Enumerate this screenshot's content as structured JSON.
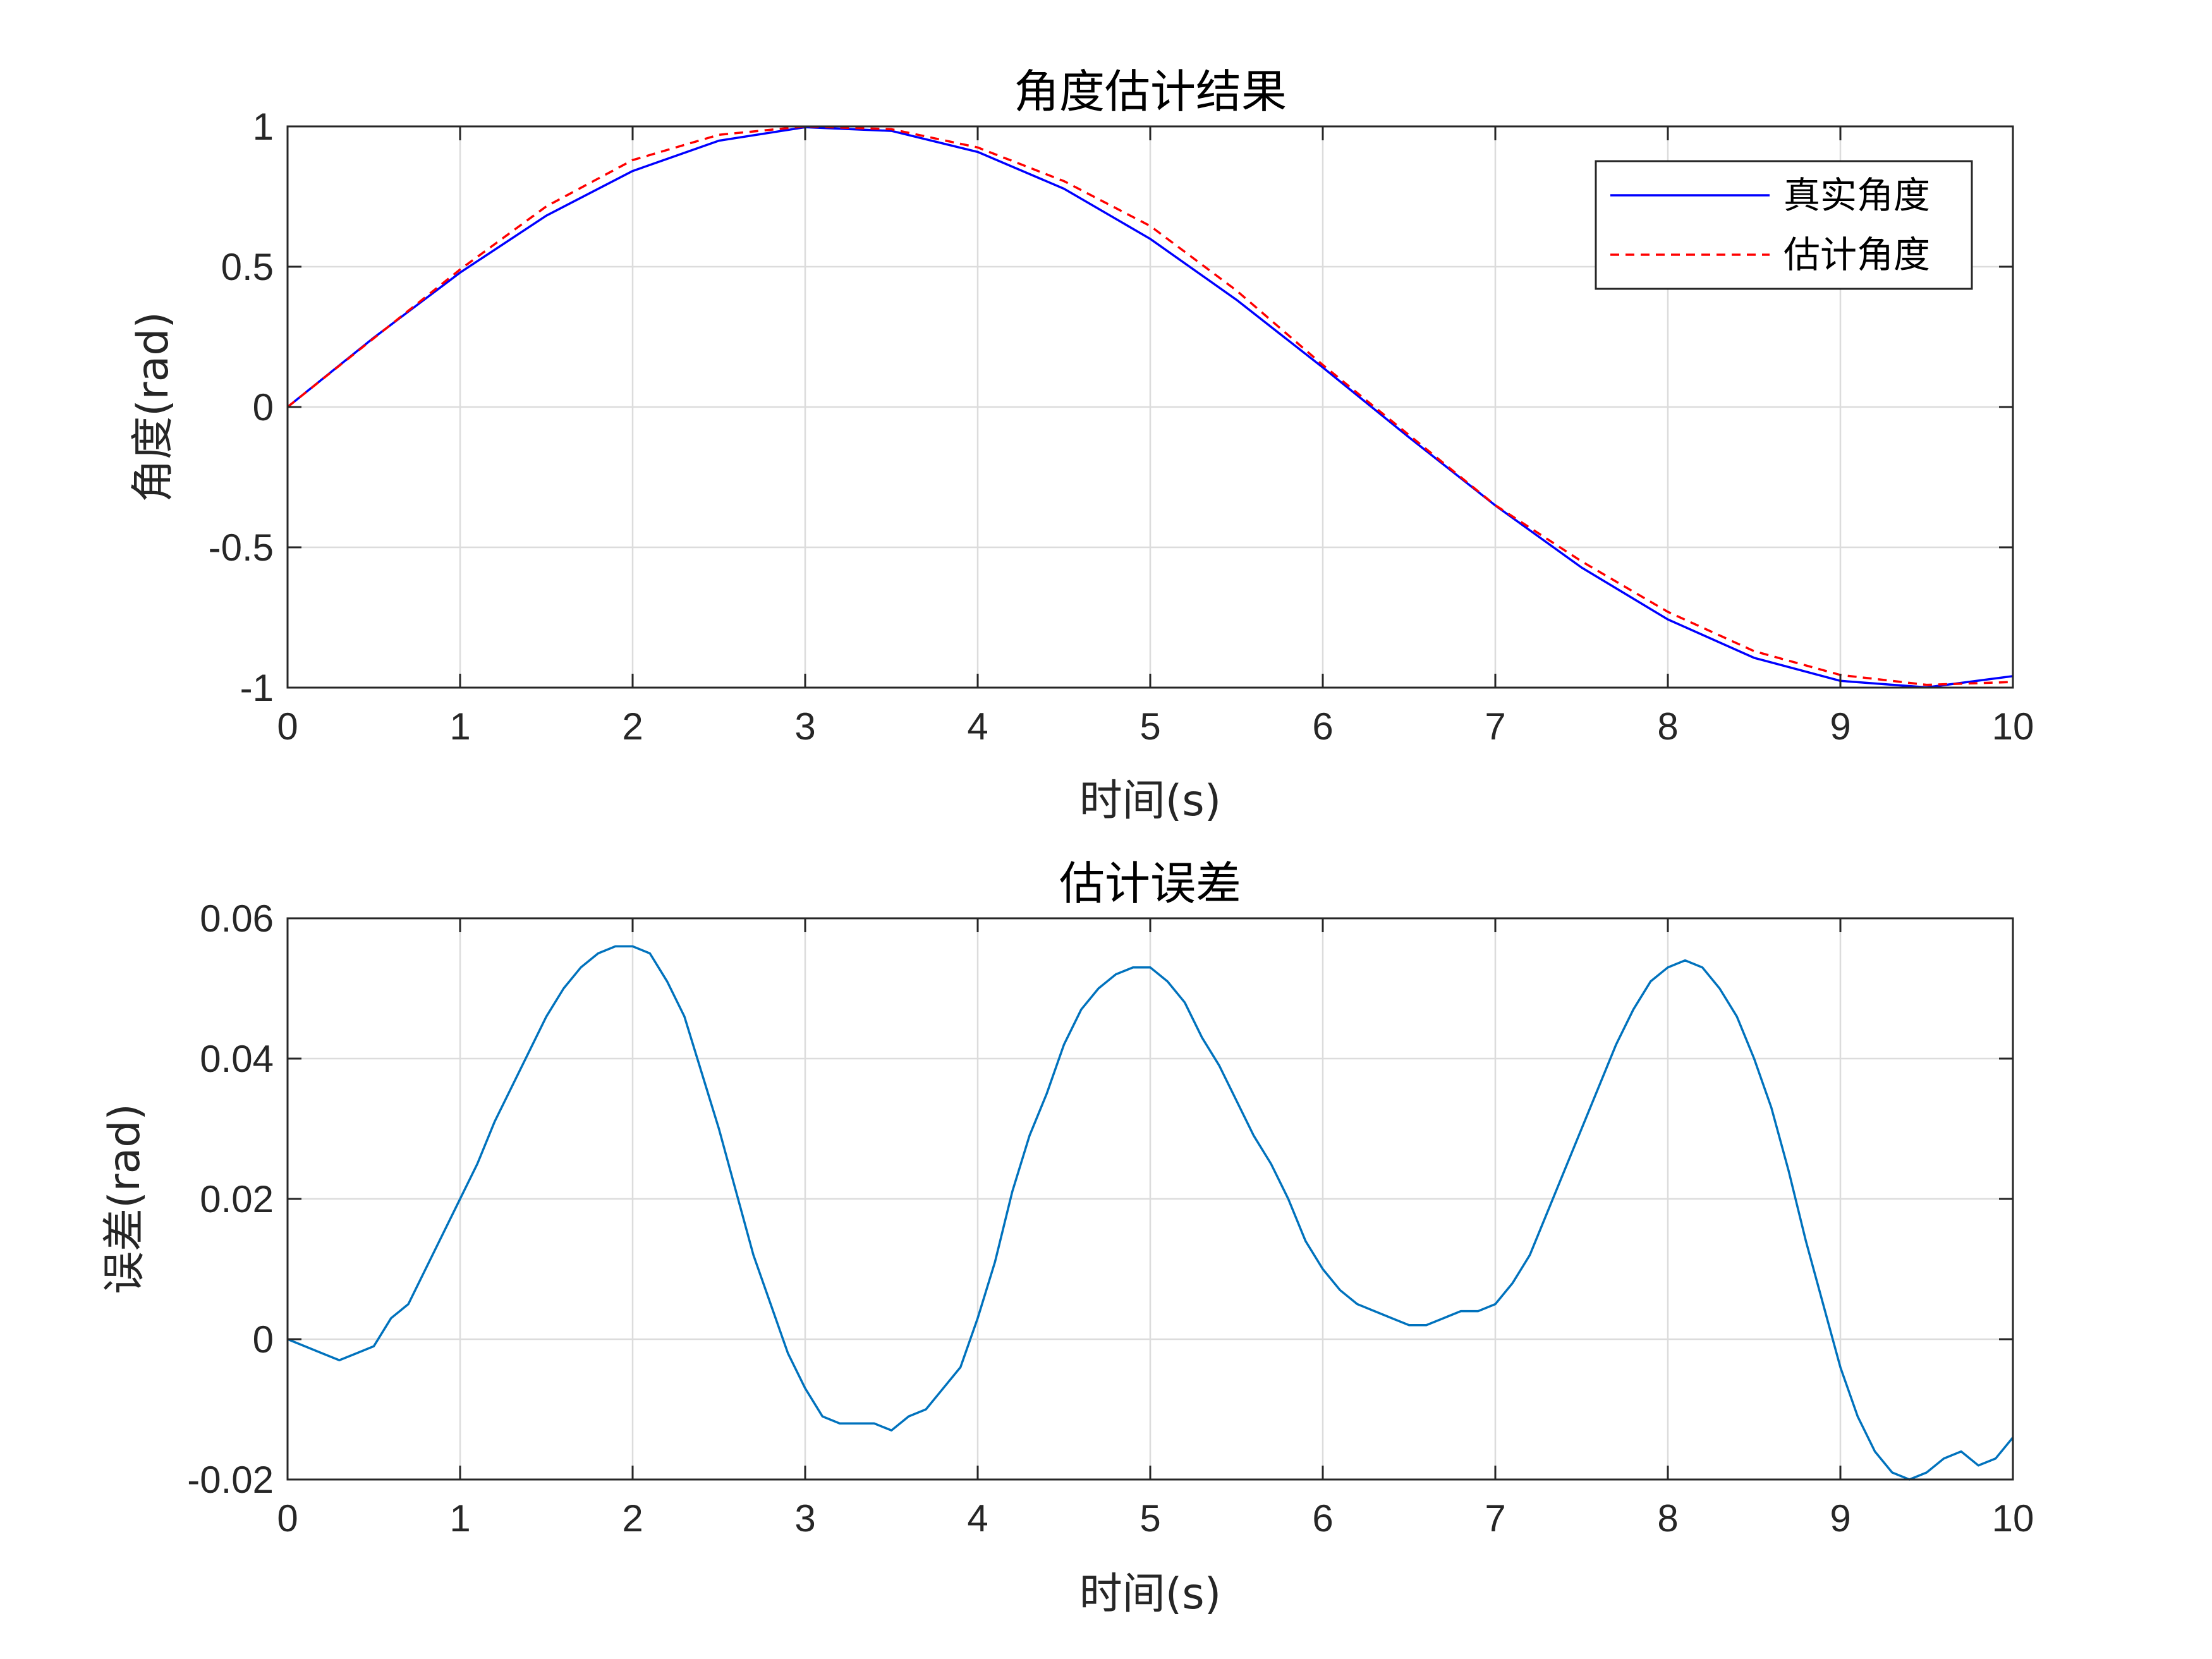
{
  "chart_data": [
    {
      "type": "line",
      "title": "角度估计结果",
      "xlabel": "时间(s)",
      "ylabel": "角度(rad)",
      "xlim": [
        0,
        10
      ],
      "ylim": [
        -1,
        1
      ],
      "xticks": [
        "0",
        "1",
        "2",
        "3",
        "4",
        "5",
        "6",
        "7",
        "8",
        "9",
        "10"
      ],
      "yticks": [
        "-1",
        "-0.5",
        "0",
        "0.5",
        "1"
      ],
      "grid": true,
      "legend_position": "top-right",
      "x": [
        0,
        0.5,
        1,
        1.5,
        2,
        2.5,
        3,
        3.5,
        4,
        4.5,
        5,
        5.5,
        6,
        6.5,
        7,
        7.5,
        8,
        8.5,
        9,
        9.5,
        10
      ],
      "series": [
        {
          "name": "真实角度",
          "color": "#0000ff",
          "style": "solid",
          "values": [
            0,
            0.247,
            0.479,
            0.682,
            0.841,
            0.949,
            0.997,
            0.984,
            0.909,
            0.778,
            0.599,
            0.382,
            0.141,
            -0.108,
            -0.351,
            -0.572,
            -0.757,
            -0.894,
            -0.976,
            -0.999,
            -0.959
          ]
        },
        {
          "name": "估计角度",
          "color": "#ff0000",
          "style": "dashed",
          "values": [
            0,
            0.245,
            0.49,
            0.715,
            0.88,
            0.97,
            1.0,
            0.99,
            0.925,
            0.805,
            0.645,
            0.415,
            0.15,
            -0.1,
            -0.35,
            -0.55,
            -0.73,
            -0.87,
            -0.955,
            -0.99,
            -0.98
          ]
        }
      ]
    },
    {
      "type": "line",
      "title": "估计误差",
      "xlabel": "时间(s)",
      "ylabel": "误差(rad)",
      "xlim": [
        0,
        10
      ],
      "ylim": [
        -0.02,
        0.06
      ],
      "xticks": [
        "0",
        "1",
        "2",
        "3",
        "4",
        "5",
        "6",
        "7",
        "8",
        "9",
        "10"
      ],
      "yticks": [
        "-0.02",
        "0",
        "0.02",
        "0.04",
        "0.06"
      ],
      "grid": true,
      "x": [
        0,
        0.1,
        0.2,
        0.3,
        0.4,
        0.5,
        0.6,
        0.7,
        0.8,
        0.9,
        1.0,
        1.1,
        1.2,
        1.3,
        1.4,
        1.5,
        1.6,
        1.7,
        1.8,
        1.9,
        2.0,
        2.1,
        2.2,
        2.3,
        2.4,
        2.5,
        2.6,
        2.7,
        2.8,
        2.9,
        3.0,
        3.1,
        3.2,
        3.3,
        3.4,
        3.5,
        3.6,
        3.7,
        3.8,
        3.9,
        4.0,
        4.1,
        4.2,
        4.3,
        4.4,
        4.5,
        4.6,
        4.7,
        4.8,
        4.9,
        5.0,
        5.1,
        5.2,
        5.3,
        5.4,
        5.5,
        5.6,
        5.7,
        5.8,
        5.9,
        6.0,
        6.1,
        6.2,
        6.3,
        6.4,
        6.5,
        6.6,
        6.7,
        6.8,
        6.9,
        7.0,
        7.1,
        7.2,
        7.3,
        7.4,
        7.5,
        7.6,
        7.7,
        7.8,
        7.9,
        8.0,
        8.1,
        8.2,
        8.3,
        8.4,
        8.5,
        8.6,
        8.7,
        8.8,
        8.9,
        9.0,
        9.1,
        9.2,
        9.3,
        9.4,
        9.5,
        9.6,
        9.7,
        9.8,
        9.9,
        10.0
      ],
      "series": [
        {
          "color": "#0072bd",
          "style": "solid",
          "values": [
            0.0,
            -0.001,
            -0.002,
            -0.003,
            -0.002,
            -0.001,
            0.003,
            0.005,
            0.01,
            0.015,
            0.02,
            0.025,
            0.031,
            0.036,
            0.041,
            0.046,
            0.05,
            0.053,
            0.055,
            0.056,
            0.056,
            0.055,
            0.051,
            0.046,
            0.038,
            0.03,
            0.021,
            0.012,
            0.005,
            -0.002,
            -0.007,
            -0.011,
            -0.012,
            -0.012,
            -0.012,
            -0.013,
            -0.011,
            -0.01,
            -0.007,
            -0.004,
            0.003,
            0.011,
            0.021,
            0.029,
            0.035,
            0.042,
            0.047,
            0.05,
            0.052,
            0.053,
            0.053,
            0.051,
            0.048,
            0.043,
            0.039,
            0.034,
            0.029,
            0.025,
            0.02,
            0.014,
            0.01,
            0.007,
            0.005,
            0.004,
            0.003,
            0.002,
            0.002,
            0.003,
            0.004,
            0.004,
            0.005,
            0.008,
            0.012,
            0.018,
            0.024,
            0.03,
            0.036,
            0.042,
            0.047,
            0.051,
            0.053,
            0.054,
            0.053,
            0.05,
            0.046,
            0.04,
            0.033,
            0.024,
            0.014,
            0.005,
            -0.004,
            -0.011,
            -0.016,
            -0.019,
            -0.02,
            -0.019,
            -0.017,
            -0.016,
            -0.018,
            -0.017,
            -0.014
          ]
        }
      ]
    }
  ]
}
